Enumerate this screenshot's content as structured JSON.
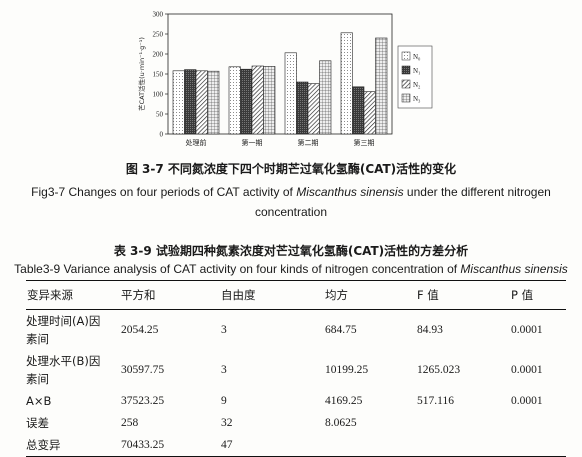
{
  "figure": {
    "caption_cn": "图 3-7 不同氮浓度下四个时期芒过氧化氢酶(CAT)活性的变化",
    "caption_en_before": "Fig3-7 Changes on four periods of CAT activity of ",
    "caption_en_species": "Miscanthus sinensis",
    "caption_en_after": " under the different nitrogen concentration"
  },
  "chart_data": {
    "type": "bar",
    "ylabel": "芒CAT活性(u·min⁻¹·g⁻¹)",
    "ylim": [
      0,
      300
    ],
    "yticks": [
      "0",
      "50",
      "100",
      "150",
      "200",
      "250",
      "300"
    ],
    "categories": [
      "处理前",
      "第一期",
      "第二期",
      "第三期"
    ],
    "series": [
      {
        "name": "N₀",
        "values": [
          158,
          168,
          203,
          253
        ]
      },
      {
        "name": "N₁",
        "values": [
          161,
          162,
          130,
          118
        ]
      },
      {
        "name": "N₂",
        "values": [
          158,
          170,
          126,
          106
        ]
      },
      {
        "name": "N₃",
        "values": [
          157,
          169,
          183,
          240
        ]
      }
    ],
    "legend": "right",
    "grid": false
  },
  "table": {
    "title_cn": "表 3-9 试验期四种氮素浓度对芒过氧化氢酶(CAT)活性的方差分析",
    "title_en_before": "Table3-9 Variance analysis of CAT activity on four kinds of nitrogen concentration of ",
    "title_en_species": "Miscanthus sinensis",
    "headers": [
      "变异来源",
      "平方和",
      "自由度",
      "均方",
      "F 值",
      "P 值"
    ],
    "rows": [
      {
        "src_a": "处理时间(A)因",
        "src_b": "素间",
        "ss": "2054.25",
        "df": "3",
        "ms": "684.75",
        "f": "84.93",
        "p": "0.0001"
      },
      {
        "src_a": "处理水平(B)因",
        "src_b": "素间",
        "ss": "30597.75",
        "df": "3",
        "ms": "10199.25",
        "f": "1265.023",
        "p": "0.0001"
      },
      {
        "src_a": "A×B",
        "src_b": "",
        "ss": "37523.25",
        "df": "9",
        "ms": "4169.25",
        "f": "517.116",
        "p": "0.0001"
      },
      {
        "src_a": "误差",
        "src_b": "",
        "ss": "258",
        "df": "32",
        "ms": "8.0625",
        "f": "",
        "p": ""
      },
      {
        "src_a": "总变异",
        "src_b": "",
        "ss": "70433.25",
        "df": "47",
        "ms": "",
        "f": "",
        "p": ""
      }
    ]
  }
}
